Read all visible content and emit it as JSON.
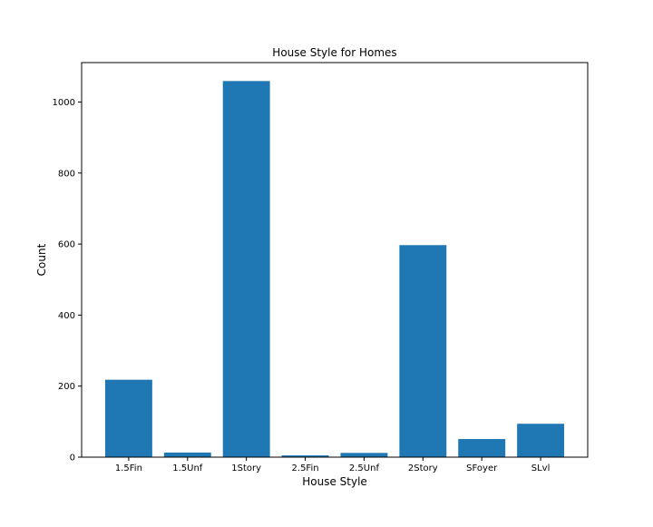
{
  "chart_data": {
    "type": "bar",
    "title": "House Style for Homes",
    "xlabel": "House Style",
    "ylabel": "Count",
    "categories": [
      "1.5Fin",
      "1.5Unf",
      "1Story",
      "2.5Fin",
      "2.5Unf",
      "2Story",
      "SFoyer",
      "SLvl"
    ],
    "values": [
      218,
      13,
      1059,
      5,
      12,
      597,
      51,
      94
    ],
    "ylim": [
      0,
      1111
    ],
    "yticks": [
      0,
      200,
      400,
      600,
      800,
      1000
    ],
    "grid": false,
    "bar_color": "#1f77b4"
  }
}
